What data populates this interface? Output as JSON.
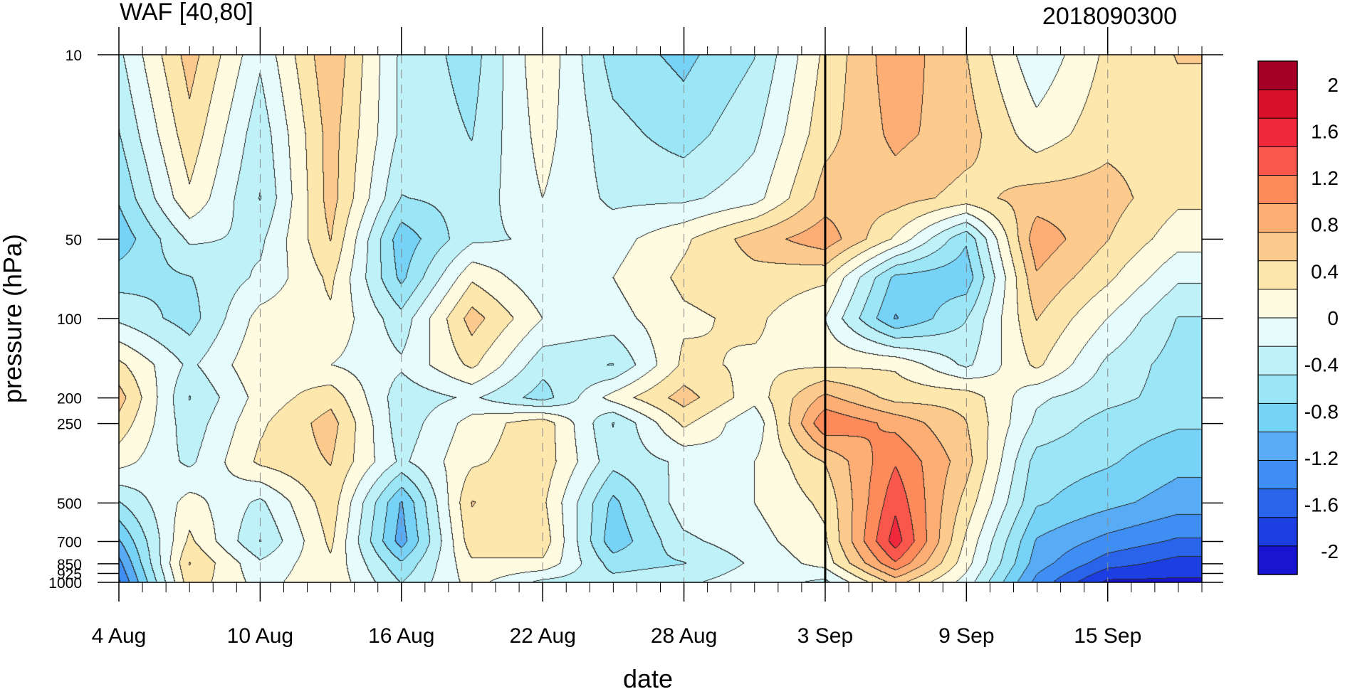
{
  "chart_data": {
    "type": "heatmap",
    "subtype": "filled-contour",
    "title_left": "WAF [40,80]",
    "title_right": "2018090300",
    "xlabel": "date",
    "ylabel": "pressure (hPa)",
    "x_ticks": [
      "4 Aug",
      "10 Aug",
      "16 Aug",
      "22 Aug",
      "28 Aug",
      "3 Sep",
      "9 Sep",
      "15 Sep"
    ],
    "x_range": [
      "2018-08-04",
      "2018-09-19"
    ],
    "y_ticks": [
      10,
      50,
      100,
      200,
      250,
      500,
      700,
      850,
      925,
      1000
    ],
    "y_scale": "log",
    "y_range": [
      1000,
      10
    ],
    "y_reversed": true,
    "vertical_marker_date": "3 Sep",
    "colorbar_labels": [
      "2",
      "1.6",
      "1.2",
      "0.8",
      "0.4",
      "0",
      "-0.4",
      "-0.8",
      "-1.2",
      "-1.6",
      "-2"
    ],
    "colorbar_range": [
      -2.2,
      2.2
    ],
    "colorbar_colors": [
      "#a50026",
      "#d7112a",
      "#f0283c",
      "#f9574c",
      "#fd8a5a",
      "#fdae74",
      "#fdca8e",
      "#fee7ad",
      "#fffbe0",
      "#e6fbfb",
      "#bff1f8",
      "#9ae6f7",
      "#76d2f6",
      "#58acf6",
      "#3f8ef3",
      "#2a64ea",
      "#1d3ee0",
      "#1814cf"
    ],
    "grid": "dashed vertical lines at date ticks",
    "values": [
      [
        -0.3,
        0.6,
        -0.2,
        0.7,
        -0.3,
        -0.6,
        0.2,
        -0.6,
        -0.8,
        -0.5,
        0.3,
        0.9,
        0.5,
        -0.2,
        0.3,
        0.5
      ],
      [
        -0.5,
        0.4,
        -0.4,
        0.6,
        -0.3,
        -0.5,
        0.1,
        -0.4,
        -0.6,
        -0.3,
        0.4,
        0.8,
        0.6,
        0.1,
        0.4,
        0.4
      ],
      [
        -0.7,
        0.2,
        -0.5,
        0.6,
        -0.5,
        -0.4,
        0.0,
        -0.3,
        -0.3,
        -0.1,
        0.6,
        0.6,
        0.4,
        0.6,
        0.6,
        0.3
      ],
      [
        -0.9,
        -0.2,
        -0.3,
        0.5,
        -0.9,
        -0.3,
        -0.2,
        -0.1,
        0.2,
        0.6,
        0.9,
        0.2,
        -0.7,
        0.9,
        0.5,
        0.1
      ],
      [
        -0.6,
        -0.5,
        -0.2,
        0.3,
        -0.8,
        0.2,
        -0.2,
        0.0,
        0.3,
        0.4,
        0.3,
        -0.8,
        -0.9,
        0.7,
        0.3,
        -0.2
      ],
      [
        -0.3,
        -0.6,
        0.1,
        0.2,
        -0.4,
        0.6,
        0.0,
        -0.1,
        0.2,
        0.3,
        0.0,
        -1.0,
        -0.5,
        0.5,
        0.0,
        -0.5
      ],
      [
        0.3,
        -0.3,
        0.2,
        0.0,
        -0.2,
        0.3,
        -0.4,
        -0.5,
        0.3,
        0.2,
        0.2,
        0.2,
        -0.3,
        0.3,
        -0.3,
        -0.6
      ],
      [
        0.6,
        -0.5,
        0.1,
        0.4,
        -0.4,
        -0.2,
        -0.6,
        0.1,
        0.6,
        0.1,
        0.8,
        0.4,
        0.4,
        -0.2,
        -0.4,
        -0.6
      ],
      [
        0.4,
        -0.4,
        0.2,
        0.6,
        -0.4,
        0.1,
        0.4,
        -0.5,
        0.3,
        -0.2,
        1.2,
        0.9,
        0.5,
        -0.3,
        -0.6,
        -0.7
      ],
      [
        0.1,
        -0.3,
        0.3,
        0.5,
        -0.3,
        0.2,
        0.4,
        -0.4,
        -0.2,
        0.0,
        0.5,
        1.2,
        0.6,
        -0.6,
        -0.7,
        -0.9
      ],
      [
        -0.5,
        0.1,
        -0.3,
        0.4,
        -1.0,
        0.5,
        0.3,
        -0.8,
        -0.1,
        0.0,
        0.3,
        1.4,
        0.4,
        -0.7,
        -0.9,
        -1.1
      ],
      [
        -1.0,
        0.3,
        -0.5,
        0.3,
        -1.1,
        0.4,
        0.4,
        -0.9,
        -0.3,
        -0.1,
        0.2,
        1.6,
        0.2,
        -1.0,
        -1.3,
        -1.5
      ],
      [
        -1.3,
        0.5,
        -0.2,
        0.2,
        -0.7,
        0.2,
        0.2,
        -0.6,
        -0.5,
        -0.2,
        0.1,
        1.2,
        0.1,
        -1.1,
        -1.6,
        -1.8
      ],
      [
        -1.5,
        0.4,
        -0.1,
        0.2,
        -0.5,
        0.1,
        -0.3,
        -0.4,
        -0.3,
        -0.1,
        -0.3,
        0.6,
        -0.1,
        -1.3,
        -2.0,
        -2.0
      ]
    ],
    "values_x": [
      "4 Aug",
      "7 Aug",
      "10 Aug",
      "13 Aug",
      "16 Aug",
      "19 Aug",
      "22 Aug",
      "25 Aug",
      "28 Aug",
      "31 Aug",
      "3 Sep",
      "6 Sep",
      "9 Sep",
      "12 Sep",
      "15 Sep",
      "18 Sep"
    ],
    "values_y": [
      10,
      20,
      35,
      50,
      70,
      100,
      150,
      200,
      250,
      350,
      500,
      700,
      850,
      1000
    ]
  }
}
